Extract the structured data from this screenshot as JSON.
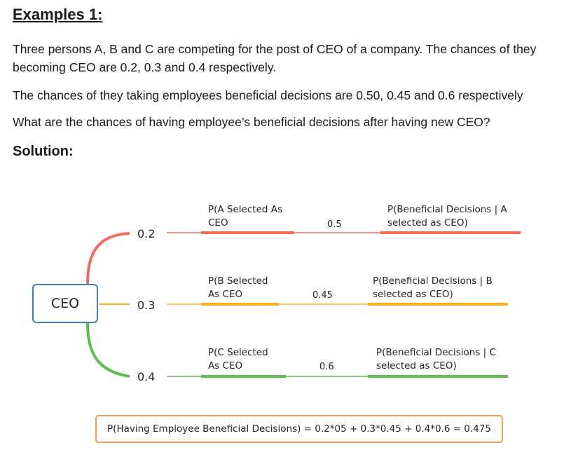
{
  "heading": "Examples 1:",
  "paragraphs": [
    "Three persons A, B and C are competing for the post of CEO of a company. The chances of they becoming CEO are 0.2, 0.3 and 0.4 respectively.",
    "The chances of they taking employees beneficial decisions are 0.50, 0.45 and 0.6 respectively",
    "What are the chances of having employee’s beneficial decisions after having new CEO?"
  ],
  "solution_label": "Solution:",
  "root": {
    "label": "CEO"
  },
  "branches": [
    {
      "prior": "0.2",
      "event_line1": "P(A Selected As",
      "event_line2": "CEO",
      "conditional": "0.5",
      "result_line1": "P(Beneficial Decisions | A",
      "result_line2": "selected as CEO)",
      "color": "#f26b5b"
    },
    {
      "prior": "0.3",
      "event_line1": "P(B Selected",
      "event_line2": "As CEO",
      "conditional": "0.45",
      "result_line1": "P(Beneficial Decisions | B",
      "result_line2": "selected as CEO)",
      "color": "#fbb01b"
    },
    {
      "prior": "0.4",
      "event_line1": "P(C Selected",
      "event_line2": "As CEO",
      "conditional": "0.6",
      "result_line1": "P(Beneficial Decisions | C",
      "result_line2": "selected as CEO)",
      "color": "#5cbf4a"
    }
  ],
  "formula": "P(Having Employee Beneficial Decisions) = 0.2*05 + 0.3*0.45 + 0.4*0.6 = 0.475",
  "colors": {
    "ceo_border": "#3a7fc4",
    "formula_border": "#f0a05a"
  }
}
